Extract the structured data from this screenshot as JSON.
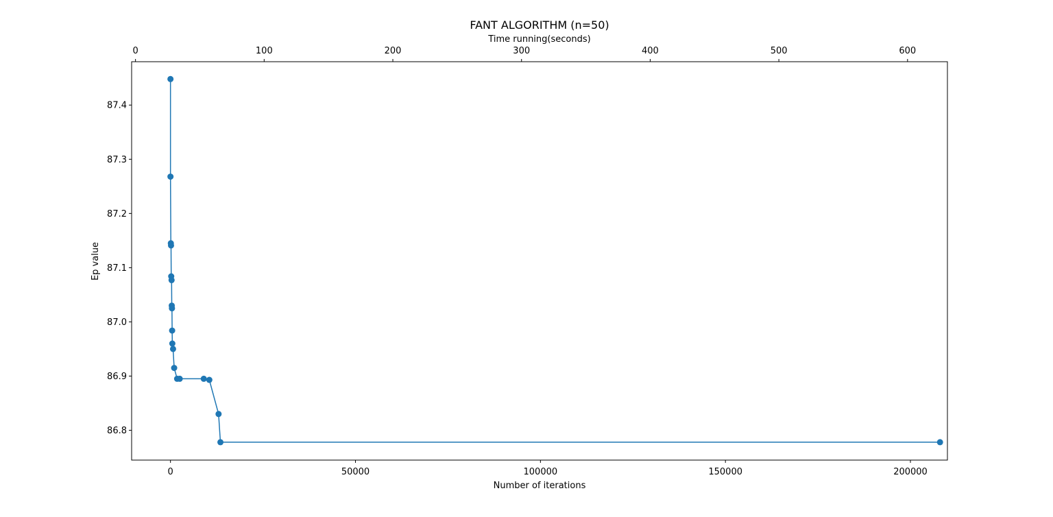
{
  "chart_data": {
    "type": "line",
    "title": "FANT ALGORITHM (n=50)",
    "xlabel": "Number of iterations",
    "ylabel": "Ep value",
    "top_xlabel": "Time running(seconds)",
    "xlim": [
      -10500,
      210000
    ],
    "ylim": [
      86.745,
      87.48
    ],
    "top_xlim": [
      -3,
      631
    ],
    "x_ticks": [
      0,
      50000,
      100000,
      150000,
      200000
    ],
    "x_tick_labels": [
      "0",
      "50000",
      "100000",
      "150000",
      "200000"
    ],
    "y_ticks": [
      86.8,
      86.9,
      87.0,
      87.1,
      87.2,
      87.3,
      87.4
    ],
    "y_tick_labels": [
      "86.8",
      "86.9",
      "87.0",
      "87.1",
      "87.2",
      "87.3",
      "87.4"
    ],
    "top_x_ticks": [
      0,
      100,
      200,
      300,
      400,
      500,
      600
    ],
    "top_x_tick_labels": [
      "0",
      "100",
      "200",
      "300",
      "400",
      "500",
      "600"
    ],
    "grid": false,
    "series": [
      {
        "color": "#1f77b4",
        "x": [
          0,
          0,
          100,
          150,
          200,
          300,
          350,
          400,
          450,
          500,
          700,
          1000,
          1800,
          2500,
          9000,
          10500,
          13000,
          13500,
          208000
        ],
        "y": [
          87.448,
          87.268,
          87.145,
          87.141,
          87.084,
          87.077,
          87.03,
          87.025,
          86.984,
          86.96,
          86.95,
          86.915,
          86.895,
          86.895,
          86.895,
          86.893,
          86.83,
          86.778,
          86.778
        ]
      }
    ]
  }
}
